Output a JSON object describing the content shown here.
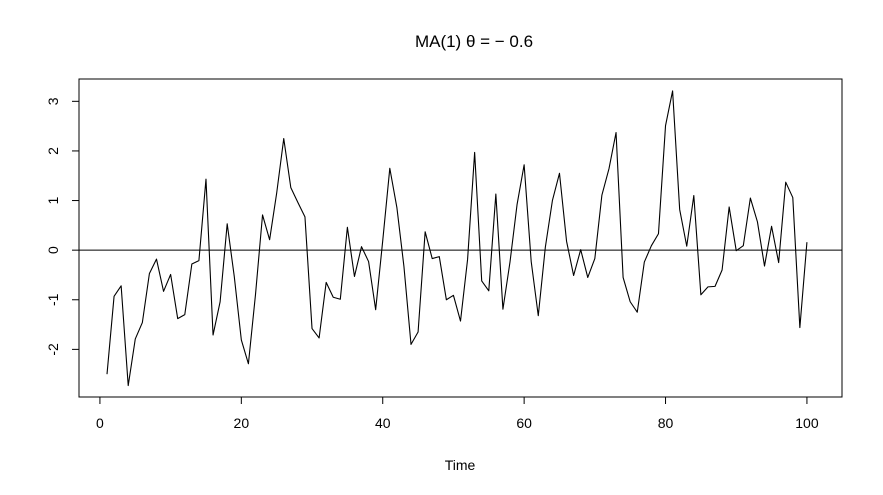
{
  "chart_data": {
    "type": "line",
    "title": "MA(1)  θ = − 0.6",
    "xlabel": "Time",
    "ylabel": "",
    "xlim": [
      -2.96,
      104.96
    ],
    "ylim": [
      -2.96,
      3.45
    ],
    "x_ticks": [
      {
        "value": 20,
        "label": "20"
      },
      {
        "value": 40,
        "label": "40"
      },
      {
        "value": 60,
        "label": "60"
      },
      {
        "value": 80,
        "label": "80"
      },
      {
        "value": 100,
        "label": "100"
      }
    ],
    "x_tick_extra": [
      {
        "value": 0,
        "label": "0"
      }
    ],
    "y_ticks": [
      {
        "value": -2,
        "label": "-2"
      },
      {
        "value": -1,
        "label": "-1"
      },
      {
        "value": 0,
        "label": "0"
      },
      {
        "value": 1,
        "label": "1"
      },
      {
        "value": 2,
        "label": "2"
      },
      {
        "value": 3,
        "label": "3"
      }
    ],
    "reference_line": {
      "y": 0
    },
    "grid": false,
    "legend": "none",
    "x": [
      1,
      2,
      3,
      4,
      5,
      6,
      7,
      8,
      9,
      10,
      11,
      12,
      13,
      14,
      15,
      16,
      17,
      18,
      19,
      20,
      21,
      22,
      23,
      24,
      25,
      26,
      27,
      28,
      29,
      30,
      31,
      32,
      33,
      34,
      35,
      36,
      37,
      38,
      39,
      40,
      41,
      42,
      43,
      44,
      45,
      46,
      47,
      48,
      49,
      50,
      51,
      52,
      53,
      54,
      55,
      56,
      57,
      58,
      59,
      60,
      61,
      62,
      63,
      64,
      65,
      66,
      67,
      68,
      69,
      70,
      71,
      72,
      73,
      74,
      75,
      76,
      77,
      78,
      79,
      80,
      81,
      82,
      83,
      84,
      85,
      86,
      87,
      88,
      89,
      90,
      91,
      92,
      93,
      94,
      95,
      96,
      97,
      98,
      99,
      100
    ],
    "values": [
      -2.5,
      -0.93,
      -0.72,
      -2.73,
      -1.79,
      -1.46,
      -0.47,
      -0.18,
      -0.83,
      -0.49,
      -1.38,
      -1.3,
      -0.28,
      -0.21,
      1.43,
      -1.71,
      -1.04,
      0.53,
      -0.53,
      -1.81,
      -2.29,
      -0.9,
      0.71,
      0.21,
      1.15,
      2.25,
      1.26,
      0.96,
      0.67,
      -1.58,
      -1.77,
      -0.65,
      -0.95,
      -0.99,
      0.46,
      -0.53,
      0.07,
      -0.23,
      -1.2,
      0.19,
      1.65,
      0.86,
      -0.33,
      -1.9,
      -1.65,
      0.37,
      -0.17,
      -0.13,
      -1.0,
      -0.91,
      -1.43,
      -0.19,
      1.97,
      -0.62,
      -0.82,
      1.13,
      -1.19,
      -0.24,
      0.92,
      1.72,
      -0.23,
      -1.32,
      0.06,
      1.0,
      1.55,
      0.18,
      -0.51,
      0.01,
      -0.55,
      -0.17,
      1.11,
      1.64,
      2.37,
      -0.55,
      -1.04,
      -1.25,
      -0.24,
      0.09,
      0.33,
      2.51,
      3.21,
      0.82,
      0.08,
      1.1,
      -0.9,
      -0.74,
      -0.73,
      -0.4,
      0.87,
      -0.01,
      0.09,
      1.05,
      0.57,
      -0.32,
      0.48,
      -0.25,
      1.37,
      1.06,
      -1.56,
      0.16
    ]
  }
}
